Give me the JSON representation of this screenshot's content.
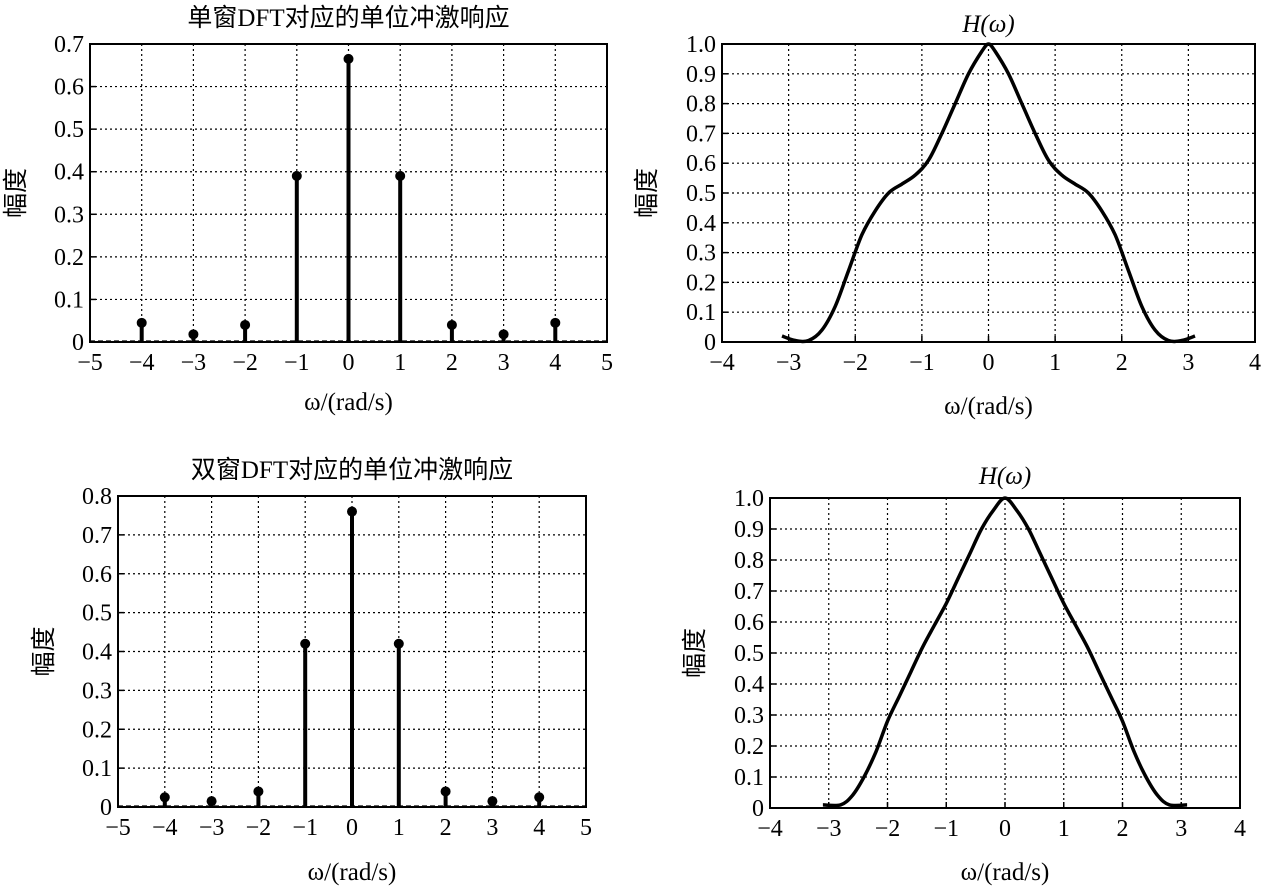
{
  "chart_data": [
    {
      "type": "stem",
      "title": "单窗DFT对应的单位冲激响应",
      "xlabel": "ω/(rad/s)",
      "ylabel": "幅度",
      "xlim": [
        -5,
        5
      ],
      "ylim": [
        0,
        0.7
      ],
      "grid": true,
      "xticks": [
        -5,
        -4,
        -3,
        -2,
        -1,
        0,
        1,
        2,
        3,
        4,
        5
      ],
      "xtick_labels": [
        "−5",
        "−4",
        "−3",
        "−2",
        "−1",
        "0",
        "1",
        "2",
        "3",
        "4",
        "5"
      ],
      "yticks": [
        0,
        0.1,
        0.2,
        0.3,
        0.4,
        0.5,
        0.6,
        0.7
      ],
      "ytick_labels": [
        "0",
        "0.1",
        "0.2",
        "0.3",
        "0.4",
        "0.5",
        "0.6",
        "0.7"
      ],
      "x": [
        -4,
        -3,
        -2,
        -1,
        0,
        1,
        2,
        3,
        4
      ],
      "y": [
        0.045,
        0.018,
        0.04,
        0.39,
        0.665,
        0.39,
        0.04,
        0.018,
        0.045
      ]
    },
    {
      "type": "line",
      "title": "H(ω)",
      "xlabel": "ω/(rad/s)",
      "ylabel": "幅度",
      "xlim": [
        -4,
        4
      ],
      "ylim": [
        0,
        1.0
      ],
      "grid": true,
      "xticks": [
        -4,
        -3,
        -2,
        -1,
        0,
        1,
        2,
        3,
        4
      ],
      "xtick_labels": [
        "−4",
        "−3",
        "−2",
        "−1",
        "0",
        "1",
        "2",
        "3",
        "4"
      ],
      "yticks": [
        0,
        0.1,
        0.2,
        0.3,
        0.4,
        0.5,
        0.6,
        0.7,
        0.8,
        0.9,
        1.0
      ],
      "ytick_labels": [
        "0",
        "0.1",
        "0.2",
        "0.3",
        "0.4",
        "0.5",
        "0.6",
        "0.7",
        "0.8",
        "0.9",
        "1.0"
      ],
      "x": [
        -3.1,
        -2.9,
        -2.7,
        -2.5,
        -2.3,
        -2.1,
        -1.9,
        -1.7,
        -1.5,
        -1.3,
        -1.1,
        -0.9,
        -0.7,
        -0.5,
        -0.3,
        -0.1,
        0,
        0.1,
        0.3,
        0.5,
        0.7,
        0.9,
        1.1,
        1.3,
        1.5,
        1.7,
        1.9,
        2.1,
        2.3,
        2.5,
        2.7,
        2.9,
        3.1
      ],
      "y": [
        0.02,
        0.005,
        0.005,
        0.04,
        0.12,
        0.24,
        0.36,
        0.44,
        0.5,
        0.53,
        0.56,
        0.61,
        0.7,
        0.8,
        0.9,
        0.975,
        1.0,
        0.975,
        0.9,
        0.8,
        0.7,
        0.61,
        0.56,
        0.53,
        0.5,
        0.44,
        0.36,
        0.24,
        0.12,
        0.04,
        0.005,
        0.005,
        0.02
      ]
    },
    {
      "type": "stem",
      "title": "双窗DFT对应的单位冲激响应",
      "xlabel": "ω/(rad/s)",
      "ylabel": "幅度",
      "xlim": [
        -5,
        5
      ],
      "ylim": [
        0,
        0.8
      ],
      "grid": true,
      "xticks": [
        -5,
        -4,
        -3,
        -2,
        -1,
        0,
        1,
        2,
        3,
        4,
        5
      ],
      "xtick_labels": [
        "−5",
        "−4",
        "−3",
        "−2",
        "−1",
        "0",
        "1",
        "2",
        "3",
        "4",
        "5"
      ],
      "yticks": [
        0,
        0.1,
        0.2,
        0.3,
        0.4,
        0.5,
        0.6,
        0.7,
        0.8
      ],
      "ytick_labels": [
        "0",
        "0.1",
        "0.2",
        "0.3",
        "0.4",
        "0.5",
        "0.6",
        "0.7",
        "0.8"
      ],
      "x": [
        -4,
        -3,
        -2,
        -1,
        0,
        1,
        2,
        3,
        4
      ],
      "y": [
        0.025,
        0.015,
        0.04,
        0.42,
        0.76,
        0.42,
        0.04,
        0.015,
        0.025
      ]
    },
    {
      "type": "line",
      "title": "H(ω)",
      "xlabel": "ω/(rad/s)",
      "ylabel": "幅度",
      "xlim": [
        -4,
        4
      ],
      "ylim": [
        0,
        1.0
      ],
      "grid": true,
      "xticks": [
        -4,
        -3,
        -2,
        -1,
        0,
        1,
        2,
        3,
        4
      ],
      "xtick_labels": [
        "−4",
        "−3",
        "−2",
        "−1",
        "0",
        "1",
        "2",
        "3",
        "4"
      ],
      "yticks": [
        0,
        0.1,
        0.2,
        0.3,
        0.4,
        0.5,
        0.6,
        0.7,
        0.8,
        0.9,
        1.0
      ],
      "ytick_labels": [
        "0",
        "0.1",
        "0.2",
        "0.3",
        "0.4",
        "0.5",
        "0.6",
        "0.7",
        "0.8",
        "0.9",
        "1.0"
      ],
      "x": [
        -3.1,
        -2.8,
        -2.6,
        -2.4,
        -2.2,
        -2.0,
        -1.8,
        -1.6,
        -1.4,
        -1.2,
        -1.0,
        -0.8,
        -0.6,
        -0.4,
        -0.2,
        0,
        0.2,
        0.4,
        0.6,
        0.8,
        1.0,
        1.2,
        1.4,
        1.6,
        1.8,
        2.0,
        2.2,
        2.4,
        2.6,
        2.8,
        3.1
      ],
      "y": [
        0.01,
        0.01,
        0.04,
        0.1,
        0.18,
        0.28,
        0.36,
        0.44,
        0.52,
        0.59,
        0.66,
        0.74,
        0.82,
        0.9,
        0.96,
        1.0,
        0.96,
        0.9,
        0.82,
        0.74,
        0.66,
        0.59,
        0.52,
        0.44,
        0.36,
        0.28,
        0.18,
        0.1,
        0.04,
        0.01,
        0.01
      ]
    }
  ]
}
